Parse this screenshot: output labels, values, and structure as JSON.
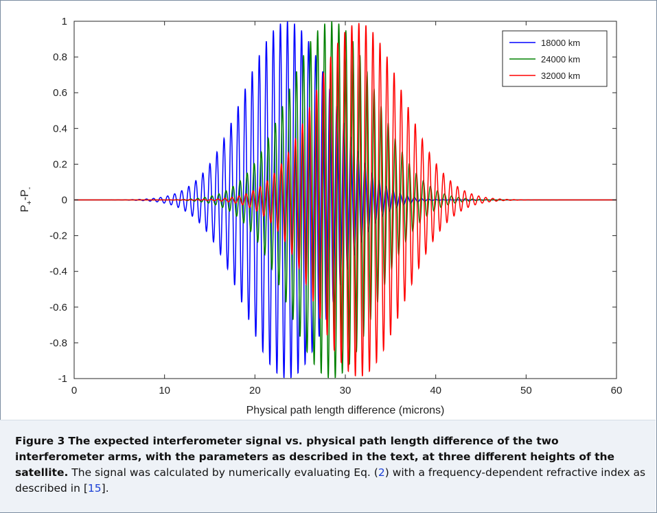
{
  "chart_data": {
    "type": "line",
    "xlabel": "Physical path length difference (microns)",
    "ylabel_main": "P",
    "ylabel_sub1": "+",
    "ylabel_mid": "-P",
    "ylabel_sub2": "-",
    "xlim": [
      0,
      60
    ],
    "ylim": [
      -1,
      1
    ],
    "x_ticks": [
      0,
      10,
      20,
      30,
      40,
      50,
      60
    ],
    "x_tick_labels": [
      "0",
      "10",
      "20",
      "30",
      "40",
      "50",
      "60"
    ],
    "y_ticks": [
      1,
      0.8,
      0.6,
      0.4,
      0.2,
      0,
      -0.2,
      -0.4,
      -0.6,
      -0.8,
      -1
    ],
    "y_tick_labels": [
      "1",
      "0.8",
      "0.6",
      "0.4",
      "0.2",
      "0",
      "-0.2",
      "-0.4",
      "-0.6",
      "-0.8",
      "-1"
    ],
    "grid": false,
    "legend_position": "top-right",
    "signal_model": "damped cosine: A·exp(-((x-center)/width)^2)·cos(2π(x-center)/period)",
    "series": [
      {
        "name": "18000 km",
        "color": "#0000ff",
        "center": 23.6,
        "width": 6.8,
        "period": 0.78,
        "amplitude": 1.0
      },
      {
        "name": "24000 km",
        "color": "#008000",
        "center": 28.5,
        "width": 6.8,
        "period": 0.78,
        "amplitude": 1.0
      },
      {
        "name": "32000 km",
        "color": "#ff0000",
        "center": 31.5,
        "width": 6.8,
        "period": 0.78,
        "amplitude": 0.99
      }
    ]
  },
  "caption": {
    "figure_label": "Figure 3",
    "bold_text": "The expected interferometer signal vs. physical path length difference of the two interferometer arms, with the parameters as described in the text, at three different heights of the satellite.",
    "text_before_eq": "The signal was calculated by numerically evaluating Eq. (",
    "eq_ref": "2",
    "text_after_eq": ") with a frequency-dependent refractive index as described in [",
    "cite_ref": "15",
    "text_end": "]."
  }
}
